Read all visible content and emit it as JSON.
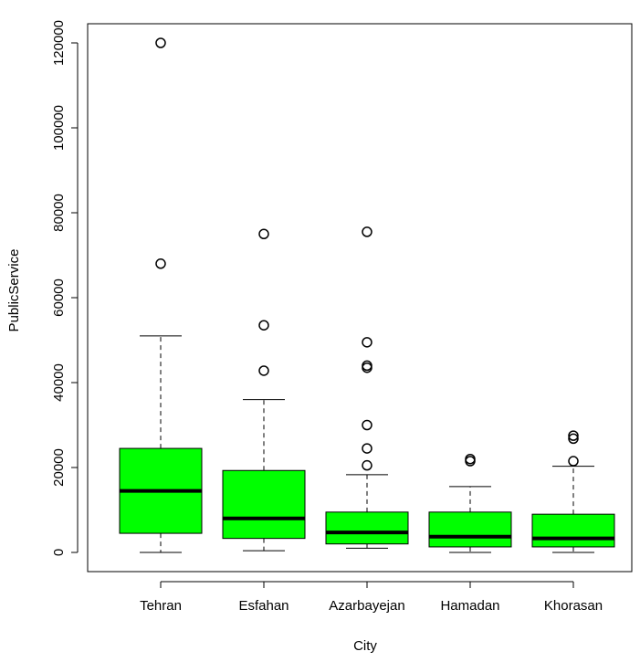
{
  "chart_data": {
    "type": "boxplot",
    "xlabel": "City",
    "ylabel": "PublicService",
    "ylim": [
      0,
      120000
    ],
    "y_ticks": [
      0,
      20000,
      40000,
      60000,
      80000,
      100000,
      120000
    ],
    "y_tick_labels": [
      "0",
      "20000",
      "40000",
      "60000",
      "80000",
      "100000",
      "120000"
    ],
    "box_color": "#00ff00",
    "categories": [
      "Tehran",
      "Esfahan",
      "Azarbayejan",
      "Hamadan",
      "Khorasan"
    ],
    "series": [
      {
        "category": "Tehran",
        "whisker_low": 0,
        "q1": 4500,
        "median": 14500,
        "q3": 24500,
        "whisker_high": 51000,
        "outliers": [
          68000,
          120000
        ]
      },
      {
        "category": "Esfahan",
        "whisker_low": 400,
        "q1": 3300,
        "median": 8000,
        "q3": 19300,
        "whisker_high": 36000,
        "outliers": [
          42800,
          53500,
          75000
        ]
      },
      {
        "category": "Azarbayejan",
        "whisker_low": 1000,
        "q1": 2000,
        "median": 4700,
        "q3": 9500,
        "whisker_high": 18300,
        "outliers": [
          20500,
          24500,
          30000,
          43500,
          44000,
          49500,
          75500
        ]
      },
      {
        "category": "Hamadan",
        "whisker_low": 0,
        "q1": 1300,
        "median": 3700,
        "q3": 9500,
        "whisker_high": 15500,
        "outliers": [
          21500,
          22000
        ]
      },
      {
        "category": "Khorasan",
        "whisker_low": 0,
        "q1": 1300,
        "median": 3300,
        "q3": 9000,
        "whisker_high": 20300,
        "outliers": [
          21500,
          26800,
          27500
        ]
      }
    ]
  }
}
